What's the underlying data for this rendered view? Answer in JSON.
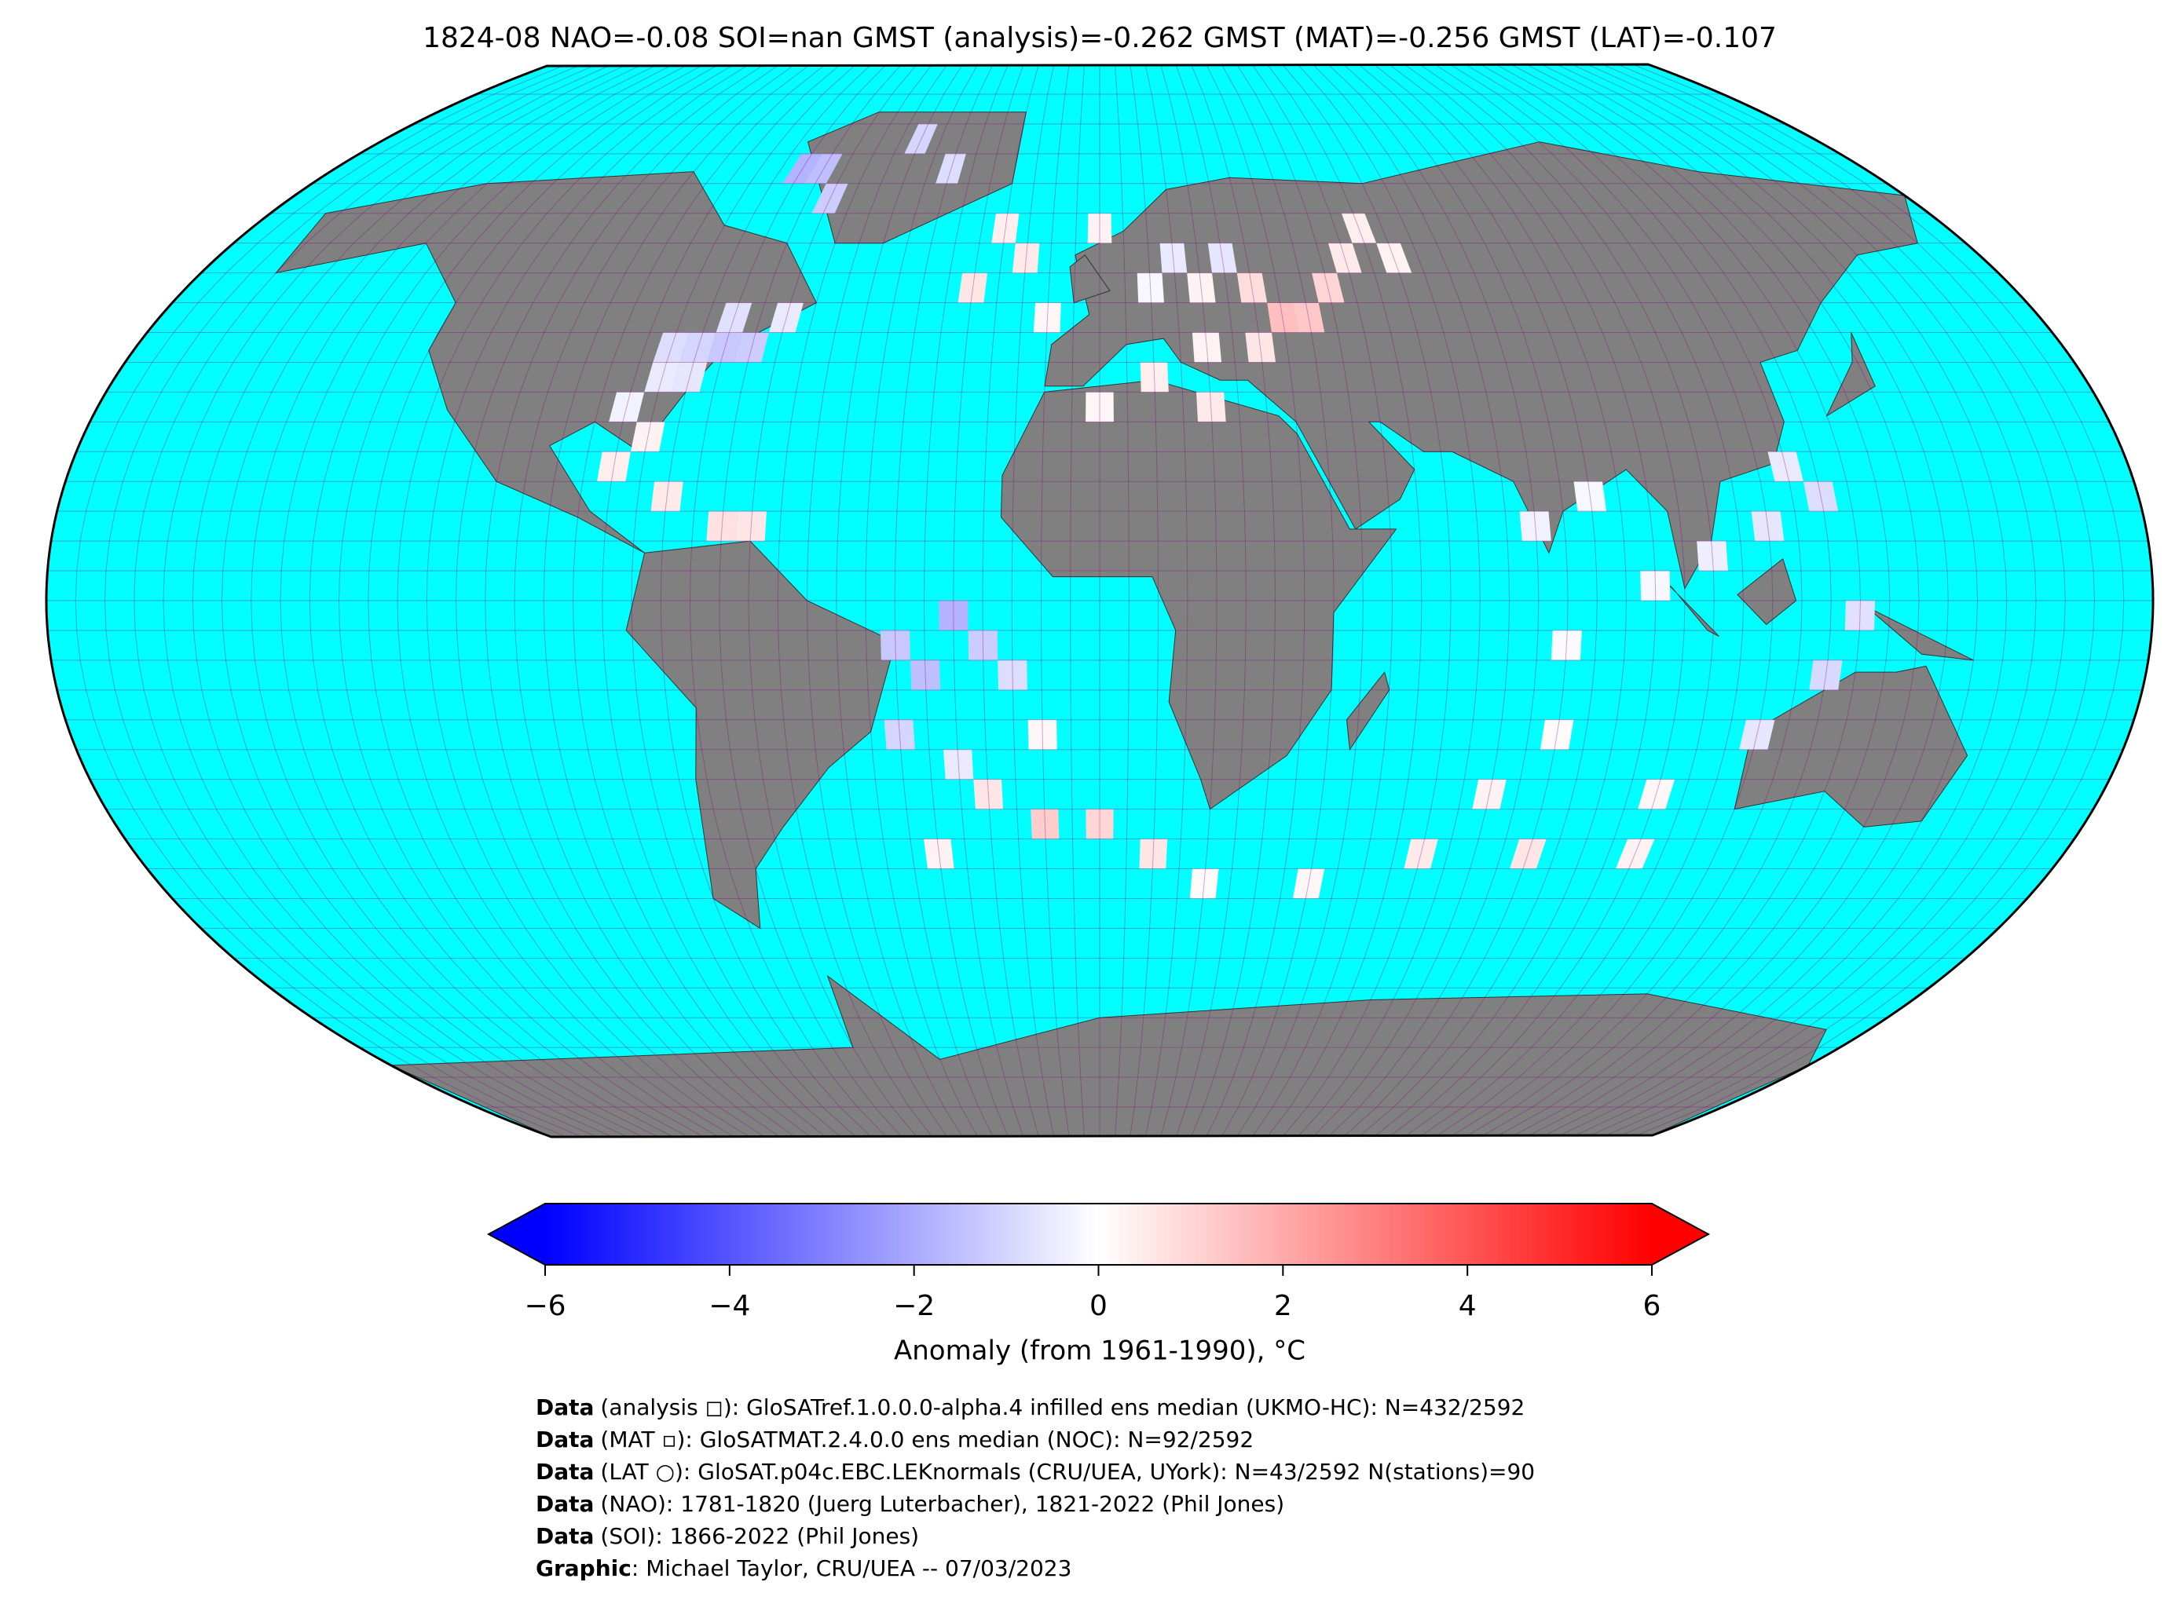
{
  "chart_data": {
    "type": "map",
    "title": "1824-08 NAO=-0.08 SOI=nan GMST (analysis)=-0.262 GMST (MAT)=-0.256 GMST (LAT)=-0.107",
    "cells": [
      [
        -70,
        72.5,
        -1.8
      ],
      [
        -65,
        72.5,
        -1.5
      ],
      [
        -60,
        67.5,
        -1.2
      ],
      [
        -45,
        77.5,
        -1.0
      ],
      [
        -35,
        72.5,
        -0.8
      ],
      [
        -80,
        42.5,
        -0.8
      ],
      [
        -75,
        42.5,
        -1.0
      ],
      [
        -70,
        42.5,
        -1.3
      ],
      [
        -65,
        42.5,
        -1.2
      ],
      [
        -80,
        37.5,
        -0.5
      ],
      [
        -75,
        37.5,
        -0.6
      ],
      [
        -85,
        32.5,
        -0.3
      ],
      [
        -80,
        27.5,
        0.3
      ],
      [
        -85,
        22.5,
        0.4
      ],
      [
        -75,
        17.5,
        0.5
      ],
      [
        -65,
        12.5,
        0.7
      ],
      [
        -60,
        12.5,
        0.6
      ],
      [
        -70,
        47.5,
        -0.7
      ],
      [
        -60,
        47.5,
        -0.5
      ],
      [
        -25,
        52.5,
        0.6
      ],
      [
        -15,
        57.5,
        0.5
      ],
      [
        -20,
        62.5,
        0.4
      ],
      [
        -10,
        47.5,
        0.2
      ],
      [
        0,
        62.5,
        0.3
      ],
      [
        10,
        52.5,
        -0.2
      ],
      [
        15,
        57.5,
        -0.5
      ],
      [
        20,
        52.5,
        0.3
      ],
      [
        25,
        57.5,
        -0.6
      ],
      [
        30,
        52.5,
        0.8
      ],
      [
        35,
        47.5,
        1.5
      ],
      [
        40,
        47.5,
        1.3
      ],
      [
        45,
        52.5,
        1.0
      ],
      [
        30,
        42.5,
        0.6
      ],
      [
        20,
        42.5,
        0.3
      ],
      [
        10,
        37.5,
        0.4
      ],
      [
        50,
        57.5,
        0.5
      ],
      [
        55,
        62.5,
        0.4
      ],
      [
        60,
        57.5,
        0.3
      ],
      [
        0,
        32.5,
        0.2
      ],
      [
        20,
        32.5,
        0.5
      ],
      [
        -35,
        -7.5,
        -1.3
      ],
      [
        -30,
        -12.5,
        -1.5
      ],
      [
        -25,
        -2.5,
        -1.8
      ],
      [
        -20,
        -7.5,
        -1.2
      ],
      [
        -15,
        -12.5,
        -0.8
      ],
      [
        -35,
        -22.5,
        -1.0
      ],
      [
        -25,
        -27.5,
        -0.5
      ],
      [
        -10,
        -22.5,
        0.2
      ],
      [
        -20,
        -32.5,
        0.6
      ],
      [
        -10,
        -37.5,
        1.2
      ],
      [
        0,
        -37.5,
        1.0
      ],
      [
        10,
        -42.5,
        0.6
      ],
      [
        -30,
        -42.5,
        0.3
      ],
      [
        20,
        -47.5,
        0.1
      ],
      [
        40,
        -47.5,
        0.2
      ],
      [
        60,
        -42.5,
        0.5
      ],
      [
        80,
        -42.5,
        0.6
      ],
      [
        100,
        -42.5,
        0.3
      ],
      [
        70,
        -32.5,
        0.3
      ],
      [
        80,
        -22.5,
        0.1
      ],
      [
        80,
        -7.5,
        -0.1
      ],
      [
        95,
        2.5,
        -0.2
      ],
      [
        105,
        7.5,
        -0.4
      ],
      [
        115,
        12.5,
        -0.6
      ],
      [
        125,
        17.5,
        -0.8
      ],
      [
        120,
        22.5,
        -0.5
      ],
      [
        130,
        -2.5,
        -0.7
      ],
      [
        125,
        -12.5,
        -0.9
      ],
      [
        115,
        -22.5,
        -0.6
      ],
      [
        100,
        -32.5,
        0.2
      ],
      [
        75,
        12.5,
        -0.3
      ],
      [
        85,
        17.5,
        -0.2
      ]
    ],
    "colorbar": {
      "label": "Anomaly (from 1961-1990), °C",
      "lim": [
        -6,
        6
      ],
      "ticks": [
        {
          "value": -6,
          "label": "−6"
        },
        {
          "value": -4,
          "label": "−4"
        },
        {
          "value": -2,
          "label": "−2"
        },
        0,
        2,
        4,
        6
      ]
    }
  },
  "credits": [
    {
      "label": "Data",
      "text": "(analysis ◻): GloSATref.1.0.0.0-alpha.4 infilled ens median (UKMO-HC): N=432/2592"
    },
    {
      "label": "Data",
      "text": "(MAT ▫): GloSATMAT.2.4.0.0 ens median (NOC): N=92/2592"
    },
    {
      "label": "Data",
      "text": "(LAT ○): GloSAT.p04c.EBC.LEKnormals (CRU/UEA, UYork): N=43/2592 N(stations)=90"
    },
    {
      "label": "Data",
      "text": "(NAO): 1781-1820 (Juerg Luterbacher), 1821-2022 (Phil Jones)"
    },
    {
      "label": "Data",
      "text": "(SOI): 1866-2022 (Phil Jones)"
    },
    {
      "label": "Graphic",
      "text": ": Michael Taylor, CRU/UEA -- 07/03/2023"
    }
  ]
}
